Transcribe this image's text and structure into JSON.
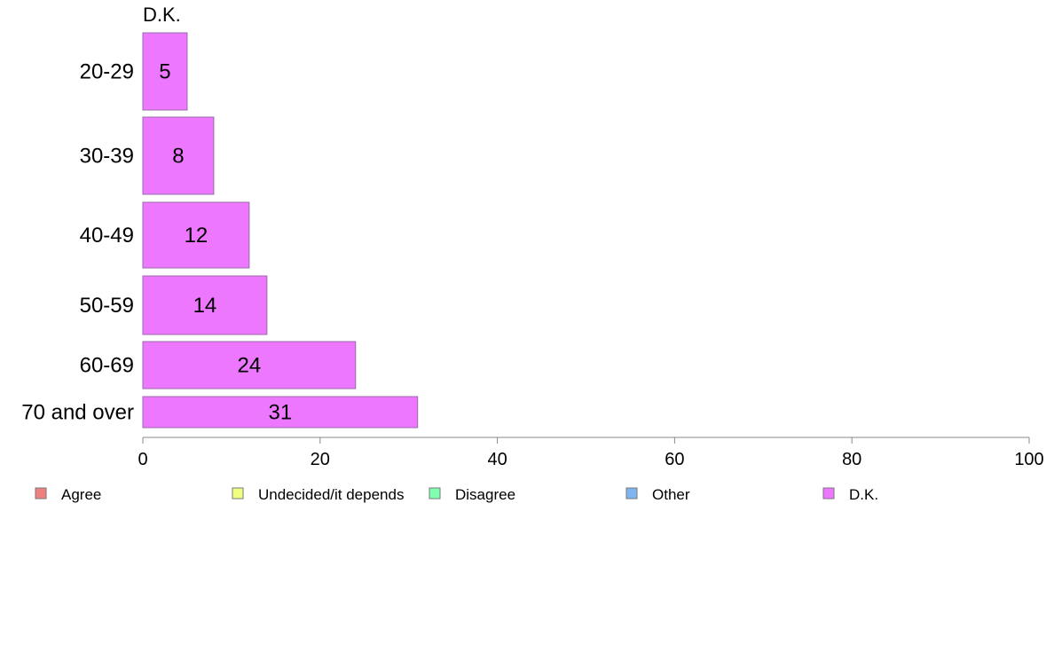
{
  "chart_data": {
    "type": "bar",
    "orientation": "horizontal",
    "facet_title": "D.K.",
    "categories": [
      "20-29",
      "30-39",
      "40-49",
      "50-59",
      "60-69",
      "70 and over"
    ],
    "series": [
      {
        "name": "D.K.",
        "values": [
          5,
          8,
          12,
          14,
          24,
          31
        ]
      }
    ],
    "xlim": [
      0,
      100
    ],
    "x_ticks": [
      0,
      20,
      40,
      60,
      80,
      100
    ],
    "legend_position": "bottom",
    "legend": [
      {
        "label": "Agree",
        "color": "#f08080"
      },
      {
        "label": "Undecided/it depends",
        "color": "#f0ff80"
      },
      {
        "label": "Disagree",
        "color": "#80ffb0"
      },
      {
        "label": "Other",
        "color": "#80b4f0"
      },
      {
        "label": "D.K.",
        "color": "#ee77ff"
      }
    ],
    "bar_color": "#ee77ff",
    "grid": false
  }
}
